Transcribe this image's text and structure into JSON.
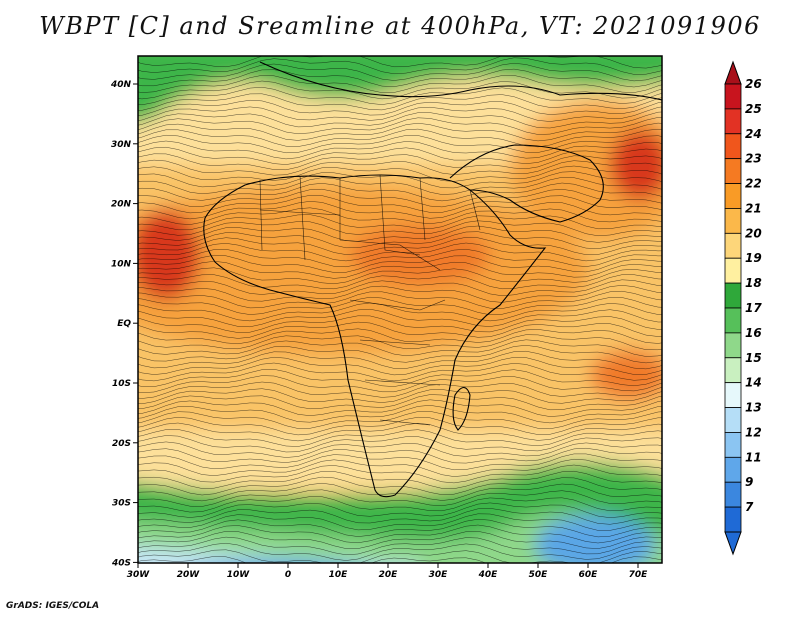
{
  "title": "WBPT [C] and Sreamline at 400hPa, VT: 2021091906",
  "credit": "GrADS: IGES/COLA",
  "lat_labels": [
    "40N",
    "30N",
    "20N",
    "10N",
    "EQ",
    "10S",
    "20S",
    "30S",
    "40S"
  ],
  "lon_labels": [
    "30W",
    "20W",
    "10W",
    "0",
    "10E",
    "20E",
    "30E",
    "40E",
    "50E",
    "60E",
    "70E"
  ],
  "colorbar": {
    "labels": [
      "26",
      "25",
      "24",
      "23",
      "22",
      "21",
      "20",
      "19",
      "18",
      "17",
      "16",
      "15",
      "14",
      "13",
      "12",
      "11",
      "9",
      "7"
    ],
    "colors": [
      "#c8141e",
      "#e23224",
      "#f0561c",
      "#f57a22",
      "#f99b26",
      "#fbb84a",
      "#fdd67a",
      "#fff0a0",
      "#2fa83a",
      "#56c05a",
      "#8fd88a",
      "#c9f0c0",
      "#e6f8fb",
      "#b5def7",
      "#8bc5f2",
      "#5fa7ea",
      "#3b87df",
      "#1f6ad6"
    ],
    "top_arrow_color": "#a8101a",
    "bottom_arrow_color": "#1f6ad6"
  },
  "map_colors": {
    "warm_core": "#f07a2a",
    "orange": "#f6a23c",
    "light_orange": "#f9c366",
    "yellow": "#fde09a",
    "green": "#3db54a",
    "light_green": "#8fd88a",
    "pale_blue": "#c6e6f6",
    "blue": "#5aa6e6",
    "red": "#d8381e"
  }
}
